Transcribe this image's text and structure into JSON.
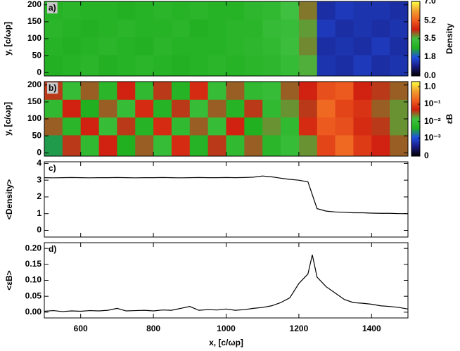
{
  "chart_data": [
    {
      "type": "heatmap",
      "panel_label": "a)",
      "ylabel": "y, [c/ωp]",
      "xlim": [
        500,
        1500
      ],
      "ylim": [
        -10,
        210
      ],
      "yticks": [
        0,
        50,
        100,
        150,
        200
      ],
      "x": [
        525,
        575,
        625,
        675,
        725,
        775,
        825,
        875,
        925,
        975,
        1025,
        1075,
        1125,
        1175,
        1225,
        1275,
        1325,
        1375,
        1425,
        1475
      ],
      "y": [
        26.25,
        78.75,
        131.25,
        183.75
      ],
      "z": [
        [
          2.7,
          2.8,
          2.9,
          2.7,
          2.8,
          2.9,
          2.8,
          2.7,
          2.8,
          2.9,
          2.8,
          2.9,
          3.0,
          3.2,
          3.6,
          1.3,
          1.2,
          1.4,
          1.2,
          1.3
        ],
        [
          2.8,
          2.7,
          2.8,
          2.9,
          2.8,
          2.7,
          2.9,
          2.8,
          2.8,
          2.8,
          2.9,
          3.0,
          3.1,
          3.4,
          3.8,
          1.2,
          1.3,
          1.2,
          1.4,
          1.2
        ],
        [
          2.9,
          2.8,
          2.7,
          2.8,
          2.9,
          2.8,
          2.8,
          2.9,
          2.7,
          2.8,
          2.9,
          2.9,
          3.2,
          3.3,
          3.7,
          1.4,
          1.2,
          1.3,
          1.2,
          1.3
        ],
        [
          2.8,
          2.9,
          2.8,
          2.8,
          2.7,
          2.8,
          2.9,
          2.8,
          2.9,
          2.8,
          2.8,
          3.0,
          3.1,
          3.5,
          3.9,
          1.2,
          1.4,
          1.3,
          1.3,
          1.2
        ]
      ],
      "colorbar_title": "Density",
      "zscale": "linear",
      "zlim": [
        0,
        7
      ],
      "zticks": [
        {
          "value": 0,
          "label": "0.0"
        },
        1.8,
        3.5,
        5.2,
        {
          "value": 7,
          "label": "7.0"
        }
      ],
      "colorscale": [
        "#000000",
        "#1a1a80",
        "#2050e0",
        "#20b020",
        "#40c040",
        "#d02010",
        "#f06020",
        "#f0a030",
        "#ffff40"
      ]
    },
    {
      "type": "heatmap",
      "panel_label": "b)",
      "ylabel": "y, [c/ωp]",
      "xlim": [
        500,
        1500
      ],
      "ylim": [
        -10,
        210
      ],
      "yticks": [
        0,
        50,
        100,
        150,
        200
      ],
      "x": [
        525,
        575,
        625,
        675,
        725,
        775,
        825,
        875,
        925,
        975,
        1025,
        1075,
        1125,
        1175,
        1225,
        1275,
        1325,
        1375,
        1425,
        1475
      ],
      "y": [
        26.25,
        78.75,
        131.25,
        183.75
      ],
      "z": [
        [
          0.003,
          0.04,
          0.008,
          0.05,
          0.004,
          0.03,
          0.01,
          0.06,
          0.005,
          0.04,
          0.008,
          0.03,
          0.006,
          0.01,
          0.02,
          0.1,
          0.2,
          0.08,
          0.05,
          0.03
        ],
        [
          0.03,
          0.006,
          0.05,
          0.01,
          0.04,
          0.005,
          0.06,
          0.008,
          0.03,
          0.01,
          0.05,
          0.004,
          0.02,
          0.008,
          0.06,
          0.15,
          0.12,
          0.06,
          0.04,
          0.02
        ],
        [
          0.008,
          0.05,
          0.004,
          0.03,
          0.01,
          0.06,
          0.005,
          0.04,
          0.01,
          0.03,
          0.005,
          0.04,
          0.008,
          0.02,
          0.04,
          0.2,
          0.1,
          0.07,
          0.03,
          0.02
        ],
        [
          0.04,
          0.01,
          0.03,
          0.006,
          0.05,
          0.008,
          0.04,
          0.005,
          0.06,
          0.01,
          0.03,
          0.008,
          0.01,
          0.03,
          0.05,
          0.12,
          0.15,
          0.05,
          0.04,
          0.03
        ]
      ],
      "colorbar_title": "εB",
      "zscale": "log",
      "zlim": [
        0,
        2
      ],
      "zticks": [
        0,
        {
          "value": 0.001,
          "label": "10⁻³"
        },
        {
          "value": 0.01,
          "label": "10⁻²"
        },
        {
          "value": 0.1,
          "label": "10⁻¹"
        },
        {
          "value": 1,
          "label": "1.0"
        }
      ],
      "colorscale": [
        "#000000",
        "#1a1a80",
        "#2050e0",
        "#20b020",
        "#40c040",
        "#d02010",
        "#f06020",
        "#f0a030",
        "#ffff40"
      ]
    },
    {
      "type": "line",
      "panel_label": "c)",
      "ylabel": "<Density>",
      "xlim": [
        500,
        1500
      ],
      "ylim": [
        -0.4,
        4.1
      ],
      "yticks": [
        0,
        1,
        2,
        3,
        4
      ],
      "color": "#000000",
      "x": [
        500,
        525,
        550,
        575,
        600,
        625,
        650,
        675,
        700,
        725,
        750,
        775,
        800,
        825,
        850,
        875,
        900,
        925,
        950,
        975,
        1000,
        1025,
        1050,
        1075,
        1100,
        1125,
        1150,
        1175,
        1200,
        1225,
        1250,
        1275,
        1300,
        1325,
        1350,
        1375,
        1400,
        1425,
        1450,
        1475,
        1500
      ],
      "values": [
        3.15,
        3.14,
        3.15,
        3.16,
        3.15,
        3.14,
        3.15,
        3.15,
        3.16,
        3.15,
        3.14,
        3.15,
        3.15,
        3.16,
        3.15,
        3.14,
        3.15,
        3.16,
        3.15,
        3.15,
        3.16,
        3.15,
        3.16,
        3.18,
        3.25,
        3.2,
        3.12,
        3.05,
        3.0,
        2.9,
        1.3,
        1.15,
        1.1,
        1.08,
        1.05,
        1.05,
        1.03,
        1.02,
        1.02,
        1.0,
        1.0
      ]
    },
    {
      "type": "line",
      "panel_label": "d)",
      "ylabel": "<εB>",
      "xlabel": "x, [c/ωp]",
      "xlim": [
        500,
        1500
      ],
      "xticks": [
        600,
        800,
        1000,
        1200,
        1400
      ],
      "ylim": [
        -0.018,
        0.218
      ],
      "yticks": [
        {
          "value": 0,
          "label": "0.00"
        },
        {
          "value": 0.05,
          "label": "0.05"
        },
        {
          "value": 0.1,
          "label": "0.10"
        },
        {
          "value": 0.15,
          "label": "0.15"
        },
        {
          "value": 0.2,
          "label": "0.20"
        }
      ],
      "color": "#000000",
      "x": [
        500,
        525,
        550,
        575,
        600,
        625,
        650,
        675,
        700,
        725,
        750,
        775,
        800,
        825,
        850,
        875,
        900,
        925,
        950,
        975,
        1000,
        1025,
        1050,
        1075,
        1100,
        1125,
        1150,
        1175,
        1200,
        1225,
        1237,
        1250,
        1275,
        1300,
        1325,
        1350,
        1375,
        1400,
        1425,
        1450,
        1475,
        1500
      ],
      "values": [
        0.003,
        0.005,
        0.002,
        0.004,
        0.003,
        0.005,
        0.004,
        0.006,
        0.012,
        0.004,
        0.005,
        0.006,
        0.004,
        0.007,
        0.006,
        0.012,
        0.018,
        0.006,
        0.008,
        0.007,
        0.01,
        0.006,
        0.008,
        0.012,
        0.015,
        0.02,
        0.03,
        0.045,
        0.09,
        0.12,
        0.18,
        0.11,
        0.08,
        0.06,
        0.04,
        0.03,
        0.028,
        0.025,
        0.02,
        0.018,
        0.015,
        0.01
      ]
    }
  ]
}
